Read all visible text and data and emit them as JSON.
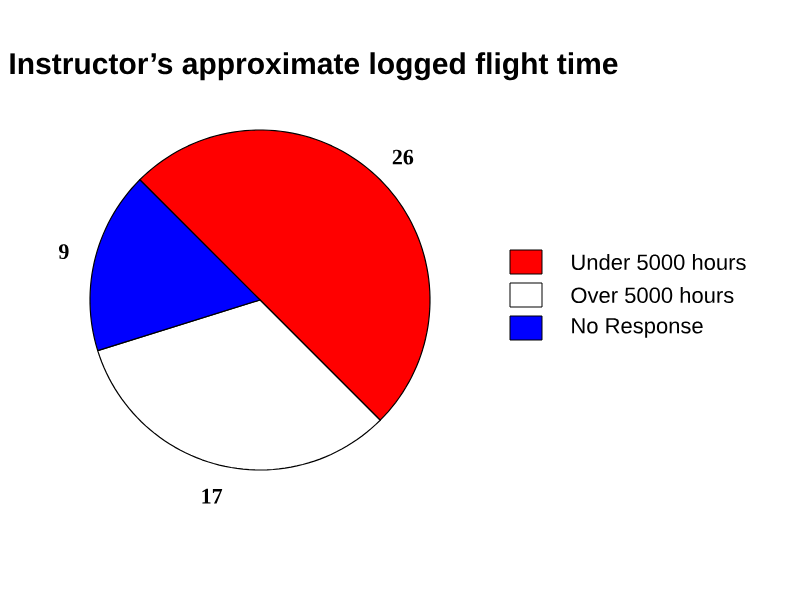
{
  "chart_data": {
    "type": "pie",
    "title": "Instructor’s approximate logged flight time",
    "categories": [
      "Under 5000 hours",
      "Over 5000 hours",
      "No Response"
    ],
    "values": [
      26,
      17,
      9
    ],
    "colors": [
      "#ff0000",
      "#ffffff",
      "#0000ff"
    ],
    "data_labels": true,
    "legend": "right"
  }
}
